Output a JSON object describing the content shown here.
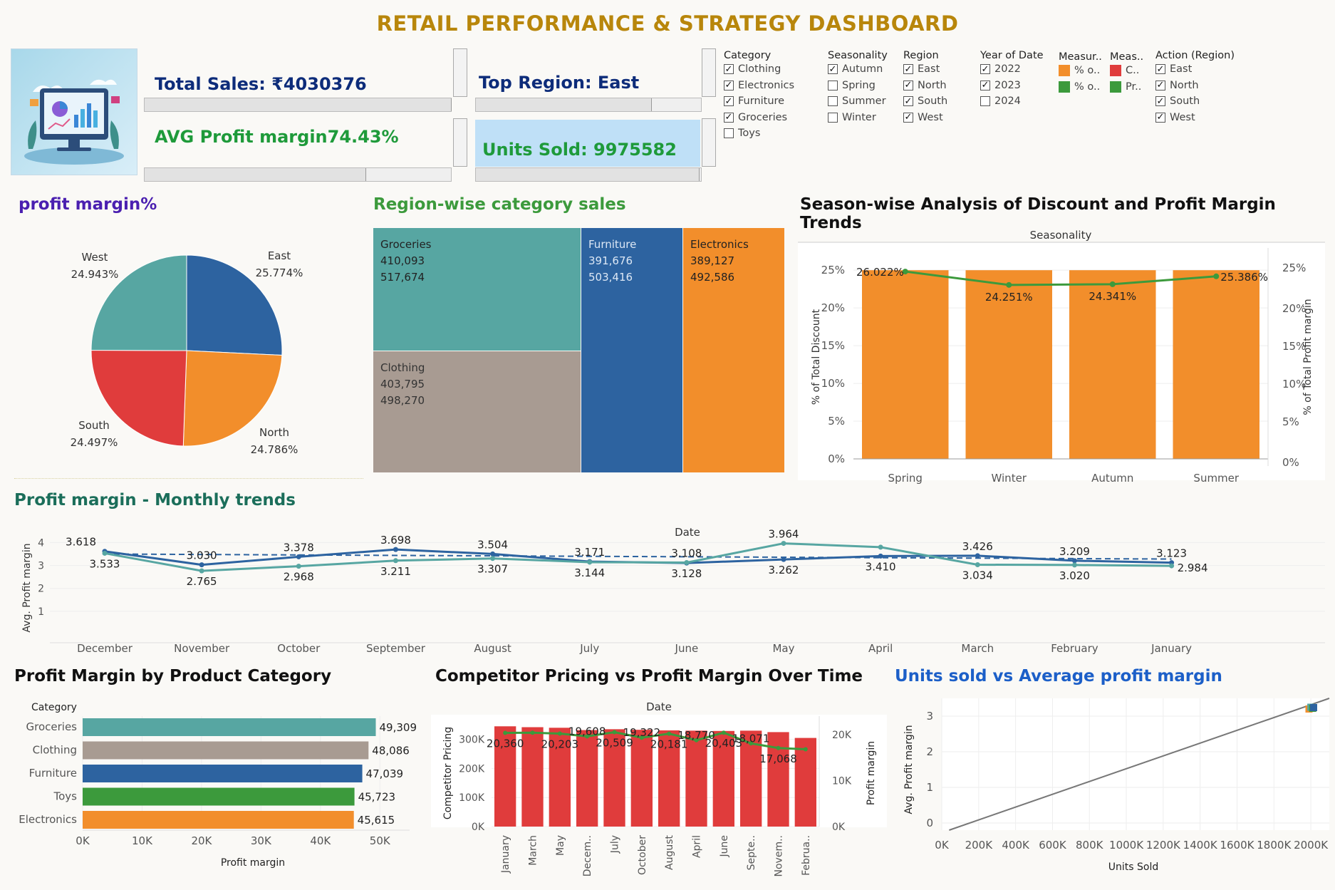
{
  "title": "RETAIL PERFORMANCE & STRATEGY DASHBOARD",
  "kpis": {
    "total_sales": "Total Sales: ₹4030376",
    "avg_profit": "AVG Profit margin74.43%",
    "top_region": "Top Region: East",
    "units_sold": "Units Sold: 9975582"
  },
  "filters": {
    "category": {
      "title": "Category",
      "items": [
        {
          "label": "Clothing",
          "checked": true
        },
        {
          "label": "Electronics",
          "checked": true
        },
        {
          "label": "Furniture",
          "checked": true
        },
        {
          "label": "Groceries",
          "checked": true
        },
        {
          "label": "Toys",
          "checked": false
        }
      ]
    },
    "seasonality": {
      "title": "Seasonality",
      "items": [
        {
          "label": "Autumn",
          "checked": true
        },
        {
          "label": "Spring",
          "checked": false
        },
        {
          "label": "Summer",
          "checked": false
        },
        {
          "label": "Winter",
          "checked": false
        }
      ]
    },
    "region": {
      "title": "Region",
      "items": [
        {
          "label": "East",
          "checked": true
        },
        {
          "label": "North",
          "checked": true
        },
        {
          "label": "South",
          "checked": true
        },
        {
          "label": "West",
          "checked": true
        }
      ]
    },
    "year": {
      "title": "Year of Date",
      "items": [
        {
          "label": "2022",
          "checked": true
        },
        {
          "label": "2023",
          "checked": true
        },
        {
          "label": "2024",
          "checked": false
        }
      ]
    },
    "measure1": {
      "title": "Measur..",
      "items": [
        {
          "label": "% o..",
          "color": "#f28e2b"
        },
        {
          "label": "% o..",
          "color": "#3c9a3c"
        }
      ]
    },
    "measure2": {
      "title": "Meas..",
      "items": [
        {
          "label": "C..",
          "color": "#e03c3c"
        },
        {
          "label": "Pr..",
          "color": "#3c9a3c"
        }
      ]
    },
    "action_region": {
      "title": "Action (Region)",
      "items": [
        {
          "label": "East",
          "checked": true
        },
        {
          "label": "North",
          "checked": true
        },
        {
          "label": "South",
          "checked": true
        },
        {
          "label": "West",
          "checked": true
        }
      ]
    }
  },
  "sections": {
    "pie_title": "profit margin%",
    "treemap_title": "Region-wise category  sales",
    "season_title": "Season-wise Analysis of Discount and Profit Margin Trends",
    "monthly_title": "Profit margin - Monthly trends",
    "category_title": "Profit Margin by Product Category",
    "competitor_title": "Competitor Pricing vs Profit Margin Over Time",
    "units_title": "Units sold vs Average profit margin"
  },
  "colors": {
    "teal": "#57a6a2",
    "blue": "#2d63a0",
    "orange": "#f28e2b",
    "red": "#e03c3c",
    "gray": "#a89b92",
    "green": "#3c9a3c",
    "darkgreen": "#1b7a4a"
  },
  "chart_data": [
    {
      "id": "pie",
      "type": "pie",
      "slices": [
        {
          "label": "East",
          "value": 25.774,
          "display": "25.774%",
          "color": "#2d63a0"
        },
        {
          "label": "North",
          "value": 24.786,
          "display": "24.786%",
          "color": "#f28e2b"
        },
        {
          "label": "South",
          "value": 24.497,
          "display": "24.497%",
          "color": "#e03c3c"
        },
        {
          "label": "West",
          "value": 24.943,
          "display": "24.943%",
          "color": "#57a6a2"
        }
      ]
    },
    {
      "id": "treemap",
      "type": "treemap",
      "cells": [
        {
          "name": "Groceries",
          "v1": "410,093",
          "v2": "517,674",
          "color": "#57a6a2"
        },
        {
          "name": "Clothing",
          "v1": "403,795",
          "v2": "498,270",
          "color": "#a89b92"
        },
        {
          "name": "Furniture",
          "v1": "391,676",
          "v2": "503,416",
          "color": "#2d63a0"
        },
        {
          "name": "Electronics",
          "v1": "389,127",
          "v2": "492,586",
          "color": "#f28e2b"
        }
      ]
    },
    {
      "id": "season",
      "type": "bar",
      "header": "Seasonality",
      "categories": [
        "Spring",
        "Winter",
        "Autumn",
        "Summer"
      ],
      "series": [
        {
          "name": "% of Total Discount",
          "values": [
            25,
            25,
            25,
            25
          ]
        },
        {
          "name": "% of Total Profit margin",
          "values": [
            26.022,
            24.251,
            24.341,
            25.386
          ]
        }
      ],
      "line_labels": [
        "26.022%",
        "24.251%",
        "24.341%",
        "25.386%"
      ],
      "y_ticks": [
        "0%",
        "5%",
        "10%",
        "15%",
        "20%",
        "25%"
      ],
      "ylabel": "% of Total Discount",
      "ylabel2": "% of Total Profit margin",
      "ylim": [
        0,
        27
      ]
    },
    {
      "id": "monthly",
      "type": "line",
      "header": "Date",
      "categories": [
        "December",
        "November",
        "October",
        "September",
        "August",
        "July",
        "June",
        "May",
        "April",
        "March",
        "February",
        "January"
      ],
      "series": [
        {
          "name": "dark",
          "values": [
            3.618,
            3.03,
            3.378,
            3.698,
            3.504,
            3.171,
            3.108,
            3.262,
            3.41,
            3.426,
            3.209,
            3.123
          ],
          "color": "#2d63a0"
        },
        {
          "name": "light",
          "values": [
            3.533,
            2.765,
            2.968,
            3.211,
            3.307,
            3.144,
            3.128,
            3.964,
            3.8,
            3.034,
            3.02,
            2.984
          ],
          "color": "#57a6a2"
        }
      ],
      "top_labels": [
        "3.618",
        "3.030",
        "3.378",
        "3.698",
        "3.504",
        "3.171",
        "3.108",
        "3.964",
        "",
        "3.426",
        "3.209",
        "3.123"
      ],
      "bottom_labels": [
        "3.533",
        "2.765",
        "2.968",
        "3.211",
        "3.307",
        "3.144",
        "3.128",
        "3.262",
        "3.410",
        "3.034",
        "3.020",
        "2.984"
      ],
      "ylabel": "Avg. Profit margin",
      "y_ticks": [
        "1",
        "2",
        "3",
        "4"
      ],
      "ylim": [
        0,
        4.2
      ]
    },
    {
      "id": "category",
      "type": "bar",
      "header": "Category",
      "categories": [
        "Groceries",
        "Clothing",
        "Furniture",
        "Toys",
        "Electronics"
      ],
      "values": [
        49309,
        48086,
        47039,
        45723,
        45615
      ],
      "labels": [
        "49,309",
        "48,086",
        "47,039",
        "45,723",
        "45,615"
      ],
      "colors": [
        "#57a6a2",
        "#a89b92",
        "#2d63a0",
        "#3c9a3c",
        "#f28e2b"
      ],
      "x_ticks": [
        "0K",
        "10K",
        "20K",
        "30K",
        "40K",
        "50K"
      ],
      "xlabel": "Profit margin",
      "xlim": [
        0,
        55000
      ]
    },
    {
      "id": "competitor",
      "type": "bar",
      "header": "Date",
      "categories": [
        "January",
        "March",
        "May",
        "Decem..",
        "July",
        "October",
        "August",
        "April",
        "June",
        "Septe..",
        "Novem..",
        "Februa.."
      ],
      "bar_values": [
        345000,
        342000,
        340000,
        332000,
        335000,
        333000,
        331000,
        330000,
        329000,
        330000,
        325000,
        305000
      ],
      "line_values": [
        20360,
        20400,
        20203,
        19608,
        20509,
        19322,
        20181,
        18770,
        20403,
        18071,
        17068,
        16800
      ],
      "line_labels": [
        "20,360",
        "",
        "20,203",
        "19,608",
        "20,509",
        "19,322",
        "20,181",
        "18,770",
        "20,403",
        "18,071",
        "17,068",
        ""
      ],
      "y_ticks": [
        "0K",
        "100K",
        "200K",
        "300K"
      ],
      "y2_ticks": [
        "0K",
        "10K",
        "20K"
      ],
      "ylabel": "Competitor Pricing",
      "ylabel2": "Profit margin",
      "ylim": [
        0,
        380000
      ],
      "y2lim": [
        0,
        24000
      ]
    },
    {
      "id": "scatter",
      "type": "scatter",
      "x_ticks": [
        "0K",
        "200K",
        "400K",
        "600K",
        "800K",
        "1000K",
        "1200K",
        "1400K",
        "1600K",
        "1800K",
        "2000K"
      ],
      "y_ticks": [
        "0",
        "1",
        "2",
        "3"
      ],
      "xlabel": "Units Sold",
      "ylabel": "Avg. Profit margin",
      "xlim": [
        0,
        2100000
      ],
      "ylim": [
        -0.2,
        3.5
      ],
      "points": [
        {
          "x": 1990000,
          "y": 3.2,
          "color": "#f28e2b"
        },
        {
          "x": 2000000,
          "y": 3.25,
          "color": "#57a6a2"
        },
        {
          "x": 2010000,
          "y": 3.22,
          "color": "#3c9a3c"
        },
        {
          "x": 2015000,
          "y": 3.24,
          "color": "#2d63a0"
        }
      ],
      "trend": {
        "x1": 40000,
        "y1": -0.2,
        "x2": 2100000,
        "y2": 3.5
      }
    }
  ]
}
